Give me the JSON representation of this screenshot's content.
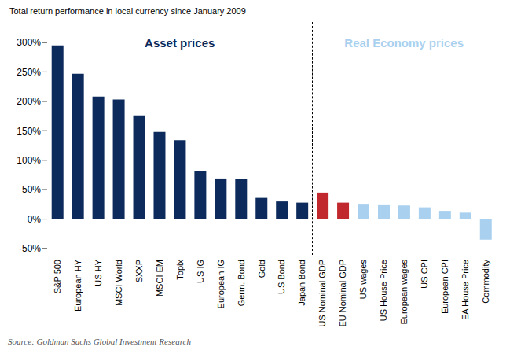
{
  "chart_data": {
    "type": "bar",
    "title": "Total return performance in local currency since January 2009",
    "subtitle": "Source: Goldman Sachs Global Investment Research",
    "annotations": [
      {
        "text": "Asset prices",
        "color": "#0d2a5c"
      },
      {
        "text": "Real Economy prices",
        "color": "#a9d1ef"
      }
    ],
    "categories": [
      "S&P 500",
      "European HY",
      "US HY",
      "MSCI World",
      "SXXP",
      "MSCI EM",
      "Topix",
      "US IG",
      "European IG",
      "Germ. Bond",
      "Gold",
      "US Bond",
      "Japan Bond",
      "US Nominal GDP",
      "EU Nominal GDP",
      "US wages",
      "US House Price",
      "European wages",
      "US CPI",
      "European CPI",
      "EA House Price",
      "Commodity"
    ],
    "values": [
      295,
      247,
      208,
      203,
      176,
      148,
      134,
      82,
      69,
      68,
      36,
      30,
      28,
      45,
      28,
      26,
      25,
      23,
      20,
      14,
      11,
      -35
    ],
    "colors": [
      "#0d2a5c",
      "#0d2a5c",
      "#0d2a5c",
      "#0d2a5c",
      "#0d2a5c",
      "#0d2a5c",
      "#0d2a5c",
      "#0d2a5c",
      "#0d2a5c",
      "#0d2a5c",
      "#0d2a5c",
      "#0d2a5c",
      "#0d2a5c",
      "#c0282d",
      "#c0282d",
      "#a9d1ef",
      "#a9d1ef",
      "#a9d1ef",
      "#a9d1ef",
      "#a9d1ef",
      "#a9d1ef",
      "#a9d1ef"
    ],
    "ylim": [
      -50,
      300
    ],
    "yticks": [
      {
        "value": -50,
        "label": "-50%"
      },
      {
        "value": 0,
        "label": "0%"
      },
      {
        "value": 50,
        "label": "50%"
      },
      {
        "value": 100,
        "label": "100%"
      },
      {
        "value": 150,
        "label": "150%"
      },
      {
        "value": 200,
        "label": "200%"
      },
      {
        "value": 250,
        "label": "250%"
      },
      {
        "value": 300,
        "label": "300%"
      }
    ],
    "grid": false
  }
}
